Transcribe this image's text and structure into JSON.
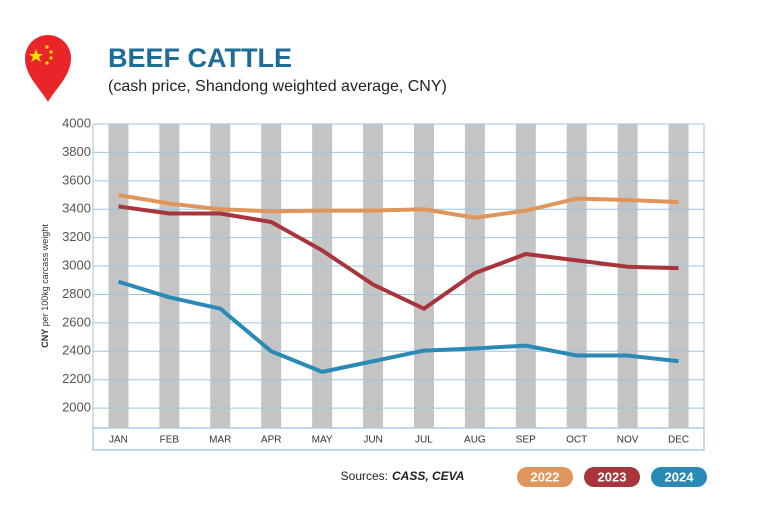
{
  "chart_data": {
    "type": "line",
    "title": "BEEF CATTLE",
    "subtitle": "(cash price, Shandong weighted average, CNY)",
    "y_label_unit": "CNY",
    "y_label": "per 100kg carcass weight",
    "source_label": "Sources:",
    "source": "CASS, CEVA",
    "categories": [
      "JAN",
      "FEB",
      "MAR",
      "APR",
      "MAY",
      "JUN",
      "JUL",
      "AUG",
      "SEP",
      "OCT",
      "NOV",
      "DEC"
    ],
    "series": [
      {
        "name": "2022",
        "color": "#e0965a",
        "values": [
          3500,
          3440,
          3400,
          3385,
          3390,
          3390,
          3400,
          3340,
          3390,
          3475,
          3465,
          3450
        ]
      },
      {
        "name": "2023",
        "color": "#a8343c",
        "values": [
          3420,
          3370,
          3370,
          3310,
          3110,
          2870,
          2700,
          2950,
          3085,
          3040,
          2995,
          2985
        ]
      },
      {
        "name": "2024",
        "color": "#2a8ab5",
        "values": [
          2890,
          2780,
          2700,
          2400,
          2255,
          2330,
          2405,
          2420,
          2440,
          2370,
          2370,
          2330
        ]
      }
    ],
    "ylim": [
      1860,
      4000
    ],
    "yticks": [
      2000,
      2200,
      2400,
      2600,
      2800,
      3000,
      3200,
      3400,
      3600,
      3800,
      4000
    ],
    "grid": true
  }
}
